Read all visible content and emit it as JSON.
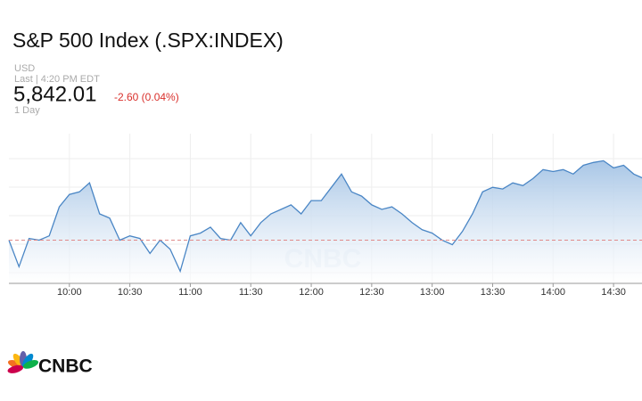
{
  "header": {
    "title": "S&P 500 Index (.SPX:INDEX)",
    "currency": "USD",
    "last": "Last | 4:20 PM EDT",
    "price": "5,842.01",
    "change": "-2.60 (0.04%)",
    "range": "1 Day"
  },
  "logo": "CNBC",
  "chart_data": {
    "type": "area",
    "watermark": "CNBC",
    "color": "#4a86c5",
    "grid": true,
    "categories": [
      null,
      null,
      null,
      null,
      null,
      null,
      "10:00",
      null,
      null,
      null,
      null,
      null,
      "10:30",
      null,
      null,
      null,
      null,
      null,
      "11:00",
      null,
      null,
      null,
      null,
      null,
      "11:30",
      null,
      null,
      null,
      null,
      null,
      "12:00",
      null,
      null,
      null,
      null,
      null,
      "12:30",
      null,
      null,
      null,
      null,
      null,
      "13:00",
      null,
      null,
      null,
      null,
      null,
      "13:30",
      null,
      null,
      null,
      null,
      null,
      "14:00",
      null,
      null,
      null,
      null,
      null,
      "14:30",
      null,
      null,
      null
    ],
    "values": [
      5821.3,
      5811.9,
      5821.9,
      5821.3,
      5822.8,
      5833.1,
      5837.5,
      5838.4,
      5841.6,
      5830.6,
      5829.1,
      5821.3,
      5822.8,
      5821.9,
      5816.6,
      5821.3,
      5818.1,
      5810.3,
      5822.8,
      5823.8,
      5825.9,
      5821.9,
      5821.3,
      5827.5,
      5822.8,
      5827.5,
      5830.6,
      5832.2,
      5833.8,
      5830.6,
      5835.3,
      5835.3,
      5840.0,
      5844.7,
      5838.4,
      5836.9,
      5833.8,
      5832.2,
      5833.1,
      5830.6,
      5827.5,
      5825.0,
      5823.8,
      5821.3,
      5819.7,
      5824.4,
      5830.6,
      5838.4,
      5840.0,
      5839.4,
      5841.6,
      5840.6,
      5843.1,
      5846.3,
      5845.6,
      5846.3,
      5844.7,
      5847.8,
      5848.8,
      5849.4,
      5846.9,
      5847.8,
      5844.7,
      5843.1
    ],
    "reference_value": 5821.3,
    "ylim": [
      5806,
      5859
    ]
  }
}
